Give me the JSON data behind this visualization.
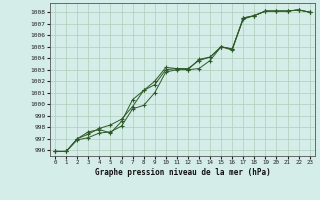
{
  "xlabel": "Graphe pression niveau de la mer (hPa)",
  "ylim": [
    995.5,
    1008.8
  ],
  "xlim": [
    -0.5,
    23.5
  ],
  "yticks": [
    996,
    997,
    998,
    999,
    1000,
    1001,
    1002,
    1003,
    1004,
    1005,
    1006,
    1007,
    1008
  ],
  "xticks": [
    0,
    1,
    2,
    3,
    4,
    5,
    6,
    7,
    8,
    9,
    10,
    11,
    12,
    13,
    14,
    15,
    16,
    17,
    18,
    19,
    20,
    21,
    22,
    23
  ],
  "bg_color": "#d4ede8",
  "grid_color": "#b0ccbb",
  "line_color": "#2d5a27",
  "line1_y": [
    995.9,
    995.9,
    996.9,
    997.1,
    997.5,
    997.6,
    998.1,
    999.6,
    999.9,
    1001.0,
    1002.8,
    1003.0,
    1003.0,
    1003.1,
    1003.8,
    1005.0,
    1004.7,
    1007.5,
    1007.7,
    1008.1,
    1008.1,
    1008.1,
    1008.2,
    1008.0
  ],
  "line2_y": [
    995.9,
    995.9,
    997.0,
    997.4,
    997.9,
    998.2,
    998.7,
    999.8,
    1001.2,
    1002.0,
    1003.2,
    1003.1,
    1003.1,
    1003.8,
    1004.1,
    1005.0,
    1004.8,
    1007.4,
    1007.7,
    1008.1,
    1008.1,
    1008.1,
    1008.2,
    1008.0
  ],
  "line3_y": [
    995.9,
    995.9,
    997.0,
    997.6,
    997.8,
    997.5,
    998.5,
    1000.4,
    1001.2,
    1001.7,
    1003.0,
    1003.1,
    1003.0,
    1003.9,
    1004.1,
    1005.0,
    1004.8,
    1007.5,
    1007.7,
    1008.1,
    1008.1,
    1008.1,
    1008.2,
    1008.0
  ]
}
